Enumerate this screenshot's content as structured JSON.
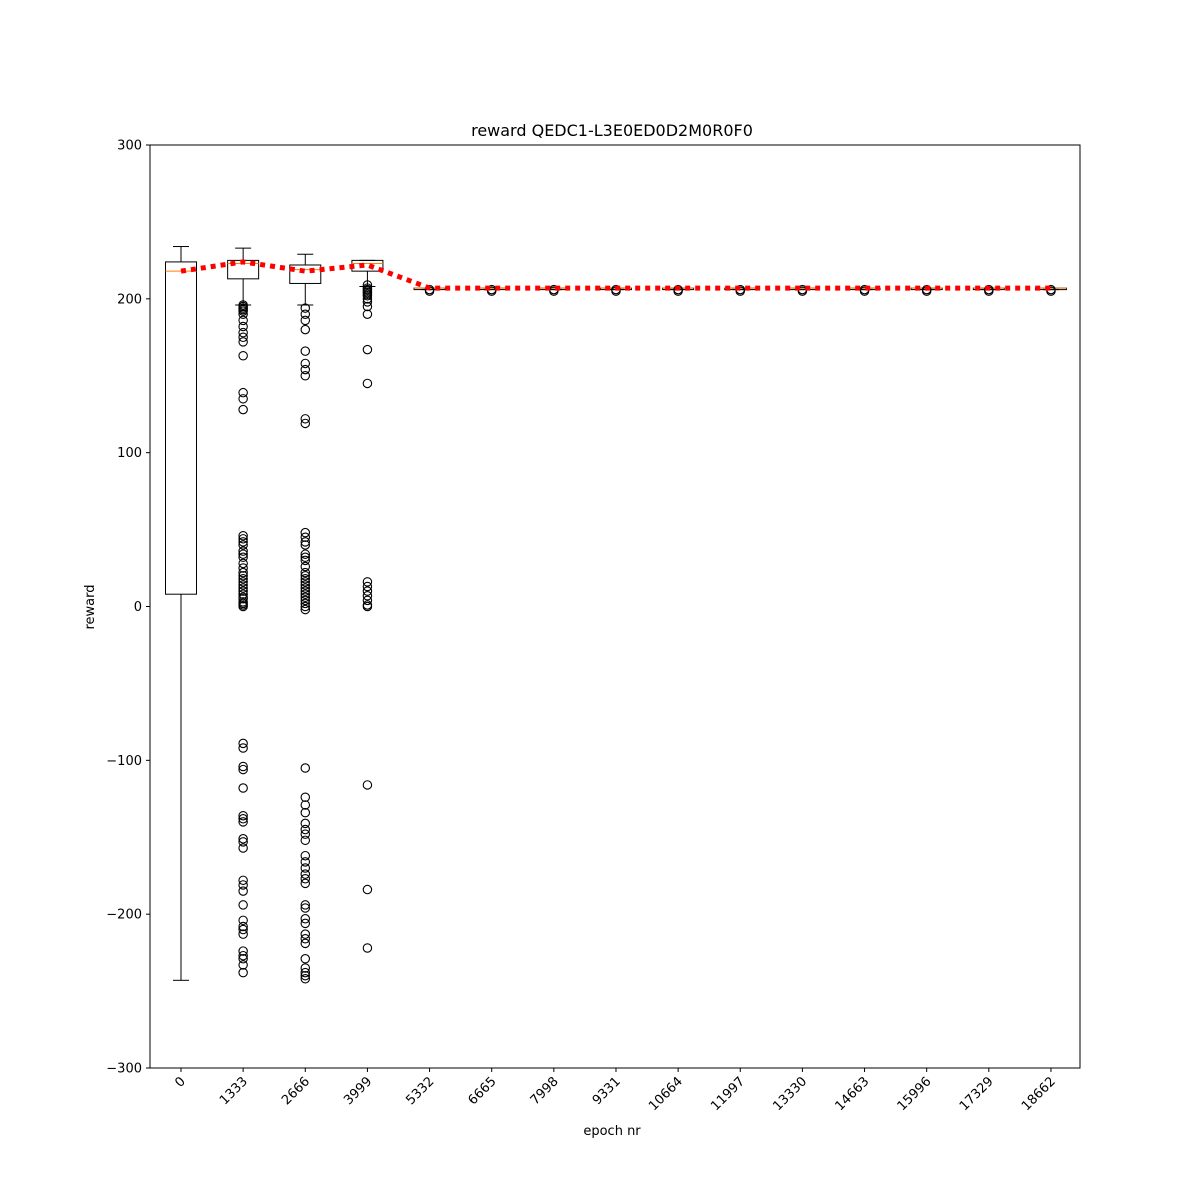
{
  "chart_data": {
    "type": "box",
    "title": "reward QEDC1-L3E0ED0D2M0R0F0",
    "xlabel": "epoch nr",
    "ylabel": "reward",
    "ylim": [
      -300,
      300
    ],
    "yticks": [
      -300,
      -200,
      -100,
      0,
      100,
      200,
      300
    ],
    "ytick_labels": [
      "−300",
      "−200",
      "−100",
      "0",
      "100",
      "200",
      "300"
    ],
    "categories": [
      "0",
      "1333",
      "2666",
      "3999",
      "5332",
      "6665",
      "7998",
      "9331",
      "10664",
      "11997",
      "13330",
      "14663",
      "15996",
      "17329",
      "18662"
    ],
    "boxes": [
      {
        "q1": 8,
        "median": 218,
        "q3": 224,
        "whisker_low": -243,
        "whisker_high": 234,
        "outliers": []
      },
      {
        "q1": 213,
        "median": 223,
        "q3": 225,
        "whisker_low": 196,
        "whisker_high": 233,
        "outliers": [
          196,
          195,
          194,
          193,
          192,
          190,
          186,
          182,
          178,
          175,
          172,
          163,
          139,
          135,
          128,
          46,
          44,
          42,
          40,
          36,
          34,
          32,
          28,
          25,
          22,
          20,
          18,
          16,
          14,
          12,
          10,
          8,
          6,
          5,
          3,
          2,
          1,
          0,
          -89,
          -92,
          -104,
          -106,
          -118,
          -136,
          -138,
          -140,
          -151,
          -153,
          -157,
          -178,
          -181,
          -185,
          -194,
          -204,
          -208,
          -210,
          -213,
          -224,
          -227,
          -229,
          -233,
          -238
        ]
      },
      {
        "q1": 210,
        "median": 219,
        "q3": 222,
        "whisker_low": 196,
        "whisker_high": 229,
        "outliers": [
          194,
          190,
          186,
          180,
          166,
          158,
          154,
          150,
          122,
          119,
          48,
          45,
          42,
          40,
          34,
          32,
          30,
          26,
          22,
          20,
          18,
          16,
          14,
          12,
          10,
          8,
          6,
          4,
          2,
          0,
          -2,
          -105,
          -124,
          -129,
          -134,
          -141,
          -145,
          -148,
          -152,
          -162,
          -166,
          -170,
          -174,
          -177,
          -180,
          -194,
          -196,
          -203,
          -206,
          -213,
          -216,
          -219,
          -229,
          -235,
          -238,
          -240,
          -242
        ]
      },
      {
        "q1": 218,
        "median": 223,
        "q3": 225,
        "whisker_low": 208,
        "whisker_high": 225,
        "outliers": [
          209,
          207,
          206,
          205,
          204,
          203,
          202,
          200,
          198,
          195,
          190,
          167,
          145,
          16,
          13,
          10,
          7,
          4,
          1,
          0,
          -116,
          -184,
          -222
        ]
      },
      {
        "q1": 206,
        "median": 207,
        "q3": 207,
        "whisker_low": 206,
        "whisker_high": 207,
        "outliers": [
          205,
          206
        ]
      },
      {
        "q1": 206,
        "median": 207,
        "q3": 207,
        "whisker_low": 206,
        "whisker_high": 207,
        "outliers": [
          205,
          206
        ]
      },
      {
        "q1": 206,
        "median": 207,
        "q3": 207,
        "whisker_low": 206,
        "whisker_high": 207,
        "outliers": [
          205,
          206
        ]
      },
      {
        "q1": 206,
        "median": 207,
        "q3": 207,
        "whisker_low": 206,
        "whisker_high": 207,
        "outliers": [
          205,
          206
        ]
      },
      {
        "q1": 206,
        "median": 207,
        "q3": 207,
        "whisker_low": 206,
        "whisker_high": 207,
        "outliers": [
          205,
          206
        ]
      },
      {
        "q1": 206,
        "median": 207,
        "q3": 207,
        "whisker_low": 206,
        "whisker_high": 207,
        "outliers": [
          205,
          206
        ]
      },
      {
        "q1": 206,
        "median": 207,
        "q3": 207,
        "whisker_low": 206,
        "whisker_high": 207,
        "outliers": [
          205,
          206
        ]
      },
      {
        "q1": 206,
        "median": 207,
        "q3": 207,
        "whisker_low": 206,
        "whisker_high": 207,
        "outliers": [
          205,
          206
        ]
      },
      {
        "q1": 206,
        "median": 207,
        "q3": 207,
        "whisker_low": 206,
        "whisker_high": 207,
        "outliers": [
          205,
          206
        ]
      },
      {
        "q1": 206,
        "median": 207,
        "q3": 207,
        "whisker_low": 206,
        "whisker_high": 207,
        "outliers": [
          205,
          206
        ]
      },
      {
        "q1": 206,
        "median": 207,
        "q3": 207,
        "whisker_low": 206,
        "whisker_high": 207,
        "outliers": [
          205,
          206
        ]
      }
    ],
    "mean_line": {
      "style": "dotted",
      "values": [
        218,
        224,
        218,
        222,
        207,
        207,
        207,
        207,
        207,
        207,
        207,
        207,
        207,
        207,
        207
      ]
    },
    "colors": {
      "box": "#000000",
      "median": "#ff7f0e",
      "mean_line": "#ff0000",
      "outlier": "#000000"
    }
  }
}
